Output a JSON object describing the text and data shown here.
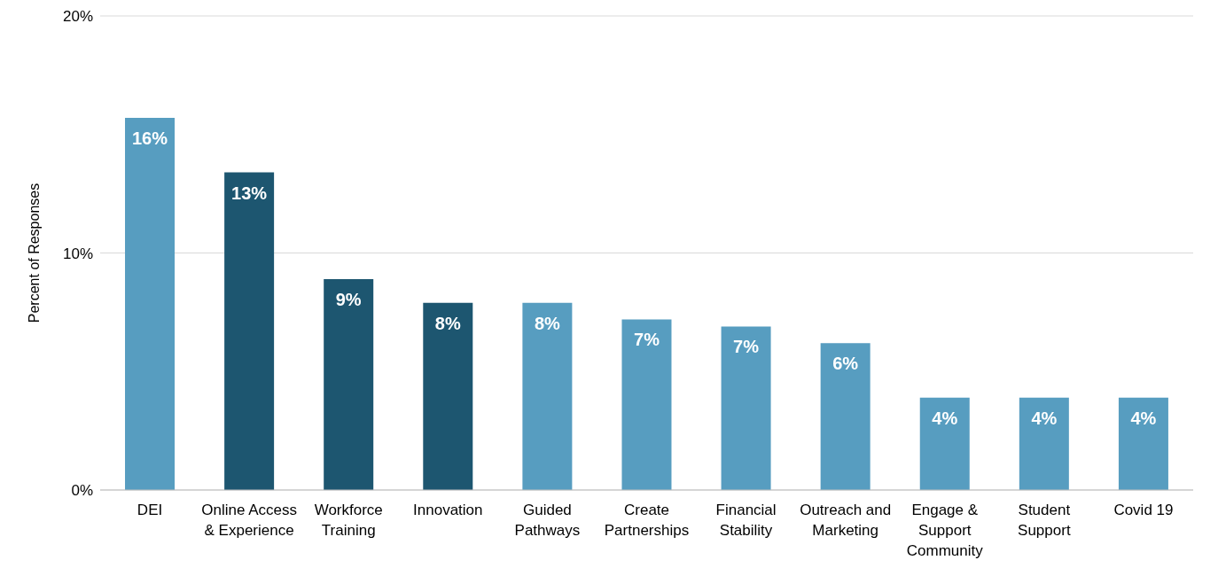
{
  "chart_data": {
    "type": "bar",
    "ylabel": "Percent of Responses",
    "categories": [
      "DEI",
      "Online Access & Experience",
      "Workforce Training",
      "Innovation",
      "Guided Pathways",
      "Create Partnerships",
      "Financial Stability",
      "Outreach and Marketing",
      "Engage & Support Community",
      "Student Support",
      "Covid 19"
    ],
    "values": [
      15.7,
      13.4,
      8.9,
      7.9,
      7.9,
      7.2,
      6.9,
      6.2,
      3.9,
      3.9,
      3.9
    ],
    "value_labels": [
      "16%",
      "13%",
      "9%",
      "8%",
      "8%",
      "7%",
      "7%",
      "6%",
      "4%",
      "4%",
      "4%"
    ],
    "colors": [
      "#579dc0",
      "#1d5670",
      "#1d5670",
      "#1d5670",
      "#579dc0",
      "#579dc0",
      "#579dc0",
      "#579dc0",
      "#579dc0",
      "#579dc0",
      "#579dc0"
    ],
    "ylim": [
      0,
      20
    ],
    "yticks": [
      {
        "value": 0,
        "label": "0%"
      },
      {
        "value": 10,
        "label": "10%"
      },
      {
        "value": 20,
        "label": "20%"
      }
    ],
    "grid": "y",
    "legend": false
  }
}
